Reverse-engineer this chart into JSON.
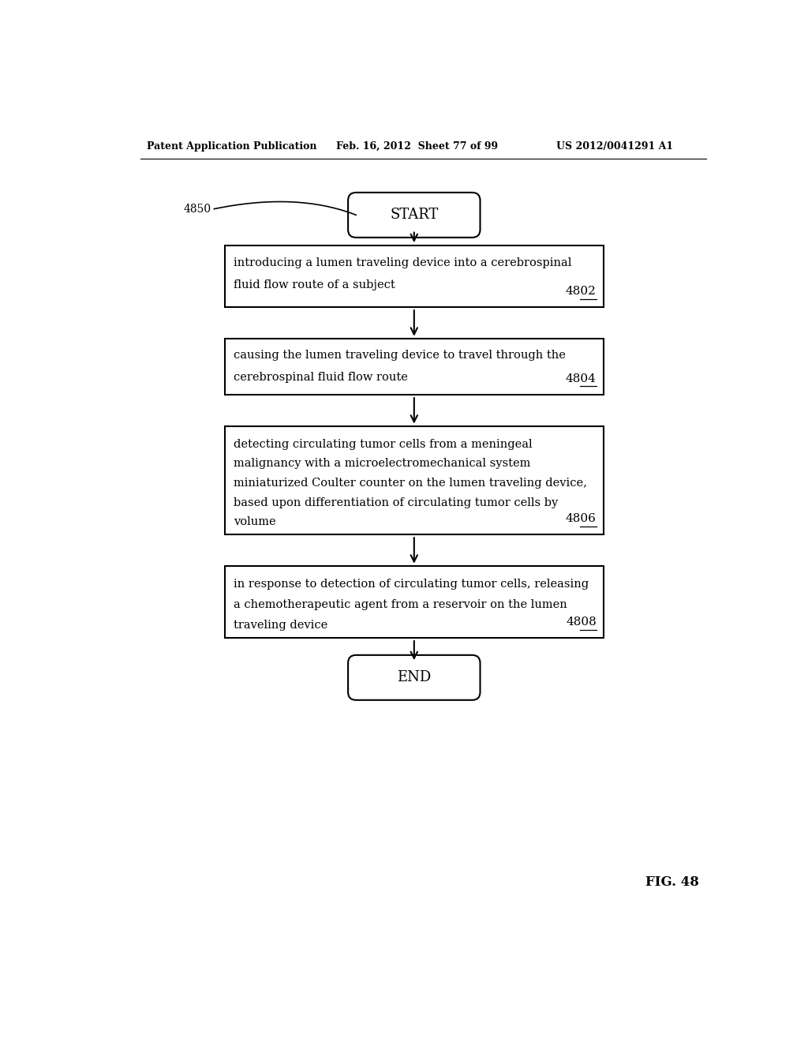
{
  "header_left": "Patent Application Publication",
  "header_mid": "Feb. 16, 2012  Sheet 77 of 99",
  "header_right": "US 2012/0041291 A1",
  "label_4850": "4850",
  "start_text": "START",
  "end_text": "END",
  "fig_label": "FIG. 48",
  "box1_lines": [
    "introducing a lumen traveling device into a cerebrospinal",
    "fluid flow route of a subject"
  ],
  "box1_ref": "4802",
  "box2_lines": [
    "causing the lumen traveling device to travel through the",
    "cerebrospinal fluid flow route"
  ],
  "box2_ref": "4804",
  "box3_lines": [
    "detecting circulating tumor cells from a meningeal",
    "malignancy with a microelectromechanical system",
    "miniaturized Coulter counter on the lumen traveling device,",
    "based upon differentiation of circulating tumor cells by",
    "volume"
  ],
  "box3_ref": "4806",
  "box4_lines": [
    "in response to detection of circulating tumor cells, releasing",
    "a chemotherapeutic agent from a reservoir on the lumen",
    "traveling device"
  ],
  "box4_ref": "4808",
  "bg_color": "#ffffff",
  "box_color": "#000000",
  "text_color": "#000000",
  "arrow_color": "#000000"
}
